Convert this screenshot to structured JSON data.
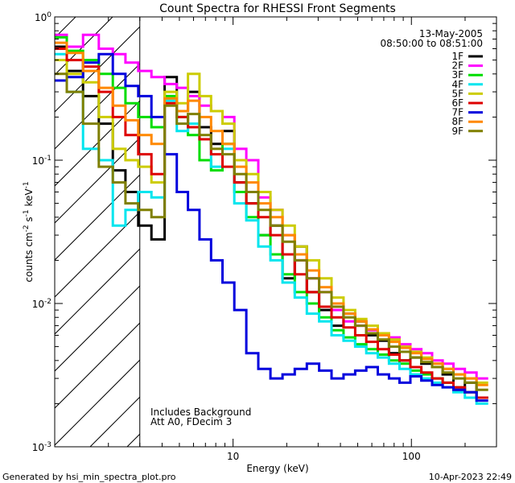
{
  "chart_data": {
    "type": "line",
    "title": "Count Spectra for RHESSI Front Segments",
    "xlabel": "Energy (keV)",
    "ylabel_parts": {
      "base": "counts cm",
      "exp1": "-2",
      "mid1": " s",
      "exp2": "-1",
      "mid2": " keV",
      "exp3": "-1"
    },
    "xscale": "log",
    "yscale": "log",
    "xlim": [
      1.0,
      300.0
    ],
    "ylim": [
      0.001,
      1.0
    ],
    "x_ticks": [
      {
        "value": 10,
        "label": "10"
      },
      {
        "value": 100,
        "label": "100"
      }
    ],
    "y_ticks": [
      {
        "value": 1.0,
        "base": "10",
        "exp": "0"
      },
      {
        "value": 0.1,
        "base": "10",
        "exp": "-1"
      },
      {
        "value": 0.01,
        "base": "10",
        "exp": "-2"
      },
      {
        "value": 0.001,
        "base": "10",
        "exp": "-3"
      }
    ],
    "legend": {
      "placement": "top-right",
      "header": [
        "13-May-2005",
        "08:50:00 to 08:51:00"
      ]
    },
    "notes": [
      "Includes Background",
      "Att A0, FDecim 3"
    ],
    "hatched_region": {
      "x_from": 1.0,
      "x_to": 3.0
    },
    "series": [
      {
        "name": "1F",
        "color": "#000000",
        "values": [
          0.62,
          0.42,
          0.28,
          0.18,
          0.085,
          0.06,
          0.035,
          0.028,
          0.38,
          0.22,
          0.3,
          0.17,
          0.13,
          0.16,
          0.07,
          0.05,
          0.03,
          0.035,
          0.015,
          0.025,
          0.012,
          0.009,
          0.007,
          0.0085,
          0.0075,
          0.006,
          0.0055,
          0.0045,
          0.004,
          0.0042,
          0.0038,
          0.0036,
          0.0032,
          0.0025,
          0.0028,
          0.0022
        ]
      },
      {
        "name": "2F",
        "color": "#ff00ff",
        "values": [
          0.75,
          0.62,
          0.75,
          0.6,
          0.55,
          0.48,
          0.42,
          0.38,
          0.34,
          0.32,
          0.28,
          0.24,
          0.22,
          0.2,
          0.12,
          0.1,
          0.055,
          0.045,
          0.03,
          0.02,
          0.015,
          0.012,
          0.009,
          0.0075,
          0.007,
          0.0065,
          0.006,
          0.0058,
          0.0052,
          0.0048,
          0.0045,
          0.004,
          0.0038,
          0.0035,
          0.0033,
          0.003
        ]
      },
      {
        "name": "3F",
        "color": "#00dd00",
        "values": [
          0.72,
          0.58,
          0.5,
          0.4,
          0.32,
          0.25,
          0.2,
          0.17,
          0.28,
          0.2,
          0.15,
          0.1,
          0.085,
          0.13,
          0.06,
          0.04,
          0.03,
          0.022,
          0.016,
          0.012,
          0.01,
          0.008,
          0.0065,
          0.0058,
          0.0052,
          0.0048,
          0.0044,
          0.004,
          0.0038,
          0.0034,
          0.0032,
          0.003,
          0.0028,
          0.0026,
          0.0024,
          0.0022
        ]
      },
      {
        "name": "4F",
        "color": "#00e5ee",
        "values": [
          0.55,
          0.3,
          0.12,
          0.1,
          0.035,
          0.045,
          0.06,
          0.055,
          0.26,
          0.16,
          0.18,
          0.14,
          0.09,
          0.12,
          0.05,
          0.038,
          0.025,
          0.02,
          0.014,
          0.011,
          0.0085,
          0.0075,
          0.006,
          0.0055,
          0.005,
          0.0045,
          0.0042,
          0.0038,
          0.0035,
          0.0032,
          0.003,
          0.0028,
          0.0026,
          0.0024,
          0.0022,
          0.002
        ]
      },
      {
        "name": "5F",
        "color": "#cccc00",
        "values": [
          0.5,
          0.4,
          0.35,
          0.2,
          0.12,
          0.1,
          0.09,
          0.07,
          0.3,
          0.25,
          0.4,
          0.28,
          0.22,
          0.18,
          0.1,
          0.08,
          0.06,
          0.045,
          0.035,
          0.025,
          0.02,
          0.015,
          0.011,
          0.009,
          0.0078,
          0.007,
          0.0062,
          0.0056,
          0.005,
          0.0046,
          0.0042,
          0.0038,
          0.0035,
          0.0032,
          0.003,
          0.0028
        ]
      },
      {
        "name": "6F",
        "color": "#dd0000",
        "values": [
          0.6,
          0.5,
          0.45,
          0.3,
          0.2,
          0.15,
          0.11,
          0.08,
          0.25,
          0.2,
          0.17,
          0.14,
          0.11,
          0.09,
          0.07,
          0.05,
          0.04,
          0.03,
          0.022,
          0.016,
          0.012,
          0.0095,
          0.008,
          0.0068,
          0.006,
          0.0054,
          0.0048,
          0.0044,
          0.004,
          0.0036,
          0.0033,
          0.003,
          0.0028,
          0.0026,
          0.0024,
          0.0022
        ]
      },
      {
        "name": "7F",
        "color": "#0000dd",
        "values": [
          0.36,
          0.38,
          0.48,
          0.55,
          0.4,
          0.33,
          0.28,
          0.2,
          0.11,
          0.06,
          0.045,
          0.028,
          0.02,
          0.014,
          0.009,
          0.0045,
          0.0035,
          0.003,
          0.0032,
          0.0035,
          0.0038,
          0.0034,
          0.003,
          0.0032,
          0.0034,
          0.0036,
          0.0032,
          0.003,
          0.0028,
          0.0031,
          0.0029,
          0.0027,
          0.0026,
          0.0025,
          0.0024,
          0.0021
        ]
      },
      {
        "name": "8F",
        "color": "#ff8800",
        "values": [
          0.66,
          0.56,
          0.42,
          0.32,
          0.24,
          0.19,
          0.15,
          0.13,
          0.27,
          0.22,
          0.26,
          0.2,
          0.16,
          0.13,
          0.09,
          0.07,
          0.05,
          0.04,
          0.03,
          0.022,
          0.017,
          0.013,
          0.01,
          0.0085,
          0.0075,
          0.0066,
          0.006,
          0.0054,
          0.0049,
          0.0045,
          0.0041,
          0.0038,
          0.0035,
          0.0032,
          0.003,
          0.0027
        ]
      },
      {
        "name": "9F",
        "color": "#7f7f00",
        "values": [
          0.4,
          0.3,
          0.18,
          0.09,
          0.07,
          0.05,
          0.045,
          0.04,
          0.24,
          0.18,
          0.21,
          0.15,
          0.12,
          0.11,
          0.08,
          0.06,
          0.045,
          0.035,
          0.027,
          0.02,
          0.015,
          0.012,
          0.0095,
          0.008,
          0.007,
          0.0062,
          0.0056,
          0.005,
          0.0046,
          0.0042,
          0.0039,
          0.0036,
          0.0033,
          0.003,
          0.0028,
          0.0025
        ]
      }
    ],
    "x": [
      1.05,
      1.3,
      1.6,
      1.95,
      2.3,
      2.7,
      3.2,
      3.8,
      4.5,
      5.2,
      6.0,
      7.0,
      8.1,
      9.4,
      11,
      12.8,
      15,
      17.5,
      20.5,
      24,
      28,
      33,
      38.5,
      45,
      52,
      60,
      70,
      80,
      92,
      106,
      122,
      140,
      160,
      185,
      215,
      250
    ]
  },
  "footer": {
    "left": "Generated by hsi_min_spectra_plot.pro",
    "right": "10-Apr-2023 22:49"
  }
}
